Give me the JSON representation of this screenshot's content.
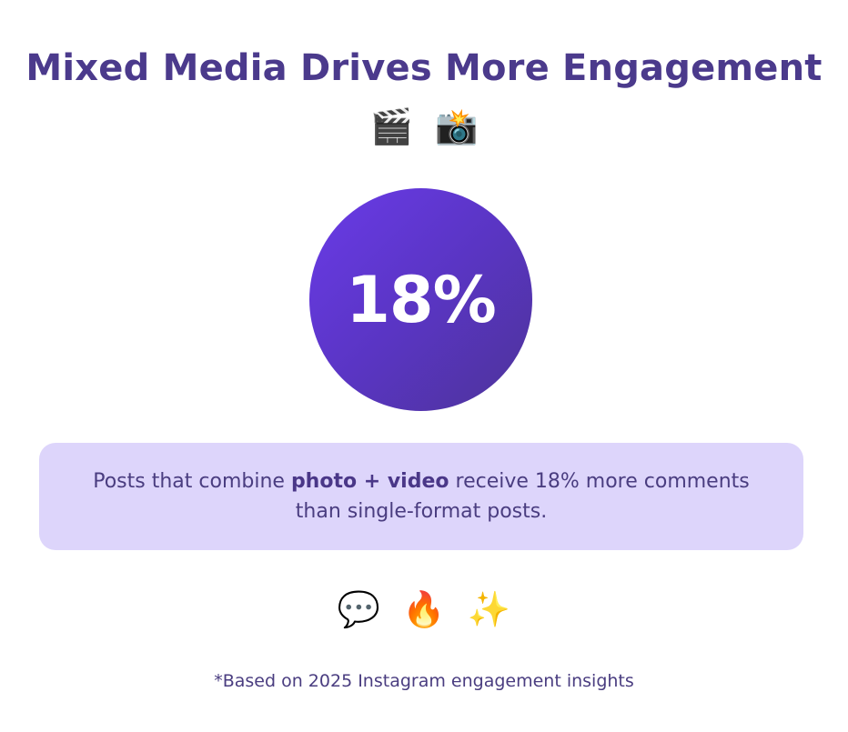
{
  "header": {
    "title": "Mixed Media Drives More Engagement",
    "icons": [
      {
        "name": "clapper-board-icon",
        "glyph": "🎬"
      },
      {
        "name": "camera-flash-icon",
        "glyph": "📸"
      }
    ]
  },
  "stat": {
    "value": "18%",
    "circle_gradient": [
      "#6a3be8",
      "#4d3499"
    ]
  },
  "insight": {
    "prefix": "Posts that combine ",
    "highlight": "photo + video",
    "suffix": " receive 18% more comments than single-format posts.",
    "background": "#ddd5fb"
  },
  "reactions": {
    "icons": [
      {
        "name": "speech-bubble-icon",
        "glyph": "💬"
      },
      {
        "name": "fire-icon",
        "glyph": "🔥"
      },
      {
        "name": "sparkles-icon",
        "glyph": "✨"
      }
    ]
  },
  "footer": {
    "note": "*Based on 2025 Instagram engagement insights"
  },
  "colors": {
    "title": "#4b3a8c",
    "text": "#4a3d80"
  }
}
